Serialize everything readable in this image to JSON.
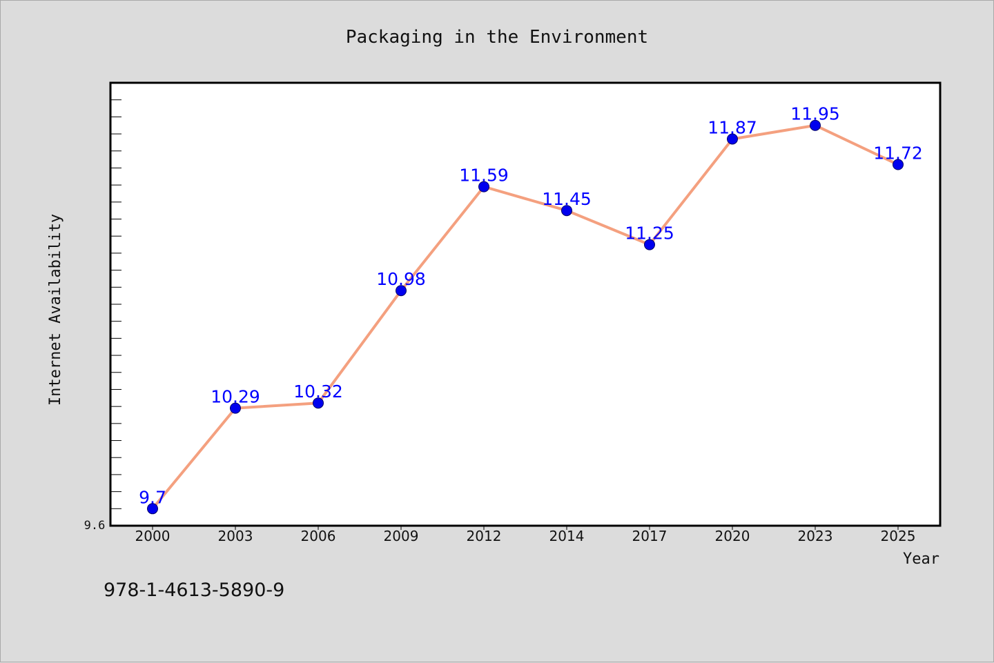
{
  "chart_data": {
    "type": "line",
    "title": "Packaging in the Environment",
    "xlabel": "Year",
    "ylabel": "Internet Availability",
    "categories": [
      "2000",
      "2003",
      "2006",
      "2009",
      "2012",
      "2014",
      "2017",
      "2020",
      "2023",
      "2025"
    ],
    "series": [
      {
        "values": [
          9.7,
          10.29,
          10.32,
          10.98,
          11.59,
          11.45,
          11.25,
          11.87,
          11.95,
          11.72
        ],
        "data_labels": [
          "9.7",
          "10.29",
          "10.32",
          "10.98",
          "11.59",
          "11.45",
          "11.25",
          "11.87",
          "11.95",
          "11.72"
        ]
      }
    ],
    "ylim": [
      9.6,
      12.2
    ],
    "y_tick_label": "9.6",
    "grid": false,
    "legend": "none",
    "colors": {
      "line": "#f4a07f",
      "marker": "#0000ee",
      "label": "#0000ff",
      "plot_background": "#ffffff",
      "page_background": "#dcdcdc"
    }
  },
  "footer": {
    "isbn": "978-1-4613-5890-9"
  }
}
